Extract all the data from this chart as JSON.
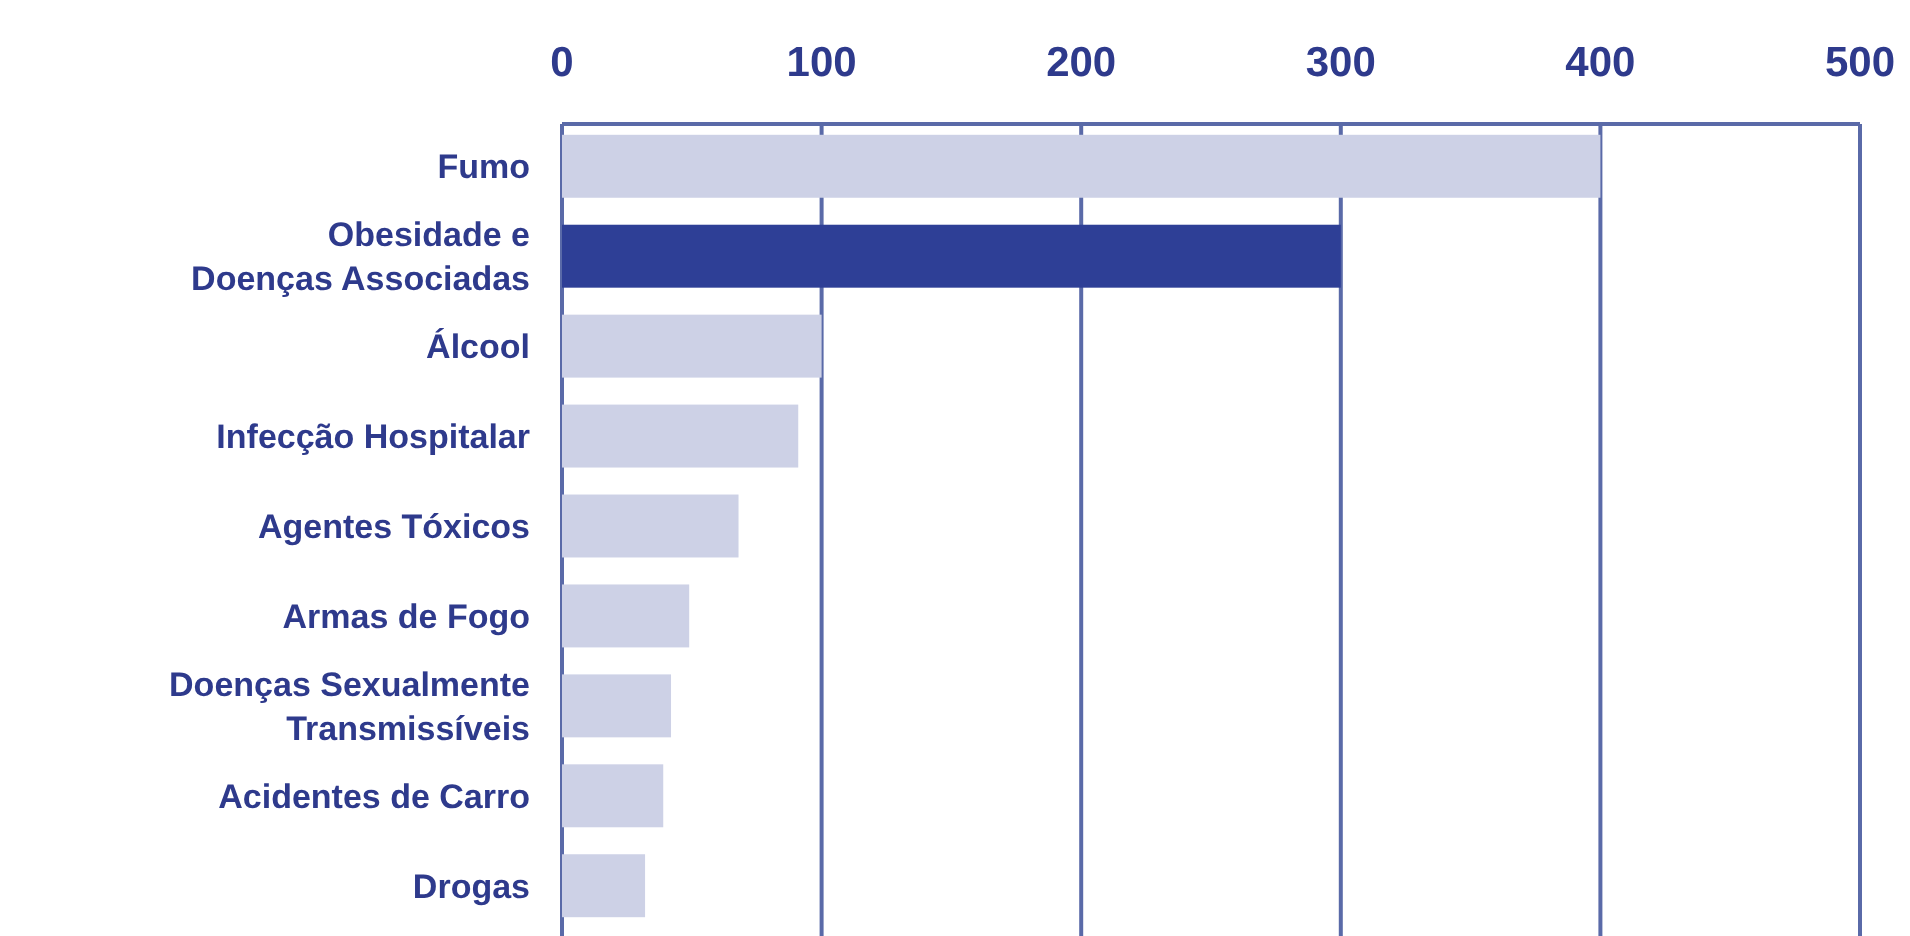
{
  "chart_data": {
    "type": "bar",
    "orientation": "horizontal",
    "categories": [
      "Fumo",
      "Obesidade e\nDoenças Associadas",
      "Álcool",
      "Infecção Hospitalar",
      "Agentes Tóxicos",
      "Armas de Fogo",
      "Doenças Sexualmente\nTransmissíveis",
      "Acidentes de Carro",
      "Drogas"
    ],
    "values": [
      400,
      300,
      100,
      91,
      68,
      49,
      42,
      39,
      32
    ],
    "colors": [
      "#cdd1e6",
      "#2e3f96",
      "#cdd1e6",
      "#cdd1e6",
      "#cdd1e6",
      "#cdd1e6",
      "#cdd1e6",
      "#cdd1e6",
      "#cdd1e6"
    ],
    "xlim": [
      0,
      500
    ],
    "xticks": [
      0,
      100,
      200,
      300,
      400,
      500
    ],
    "grid": "x"
  }
}
